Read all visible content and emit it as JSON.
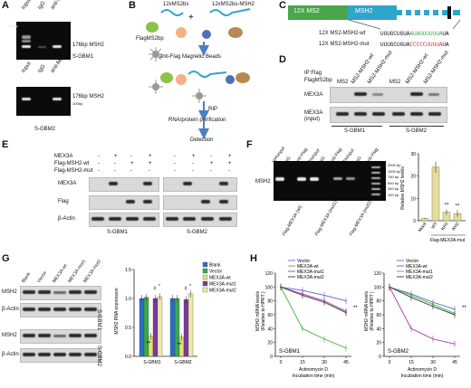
{
  "panels": {
    "A": "A",
    "B": "B",
    "C": "C",
    "D": "D",
    "E": "E",
    "F": "F",
    "G": "G",
    "H": "H"
  },
  "A": {
    "lanes": [
      "Input",
      "IgG",
      "anti-MEX3A"
    ],
    "band_label": "176bp MSH2",
    "cells1": "S-GBM1",
    "cells2": "S-GBM2",
    "ladder": [
      "250bp",
      "200bp",
      "150bp",
      "100bp"
    ],
    "ladder2": "100bp"
  },
  "B": {
    "top_left": "12xMS2bs",
    "top_right": "12xMS2bs-MSH2",
    "flag": "FlagMS2bp",
    "beads": "anti-Flag Magnetic Beads",
    "rip": "RIP",
    "purif": "RNA/protein purification",
    "detect": "Detection"
  },
  "C": {
    "construct": "12X MS2",
    "gene": "MSH2",
    "wt_label": "12X MS2-MSH2-wt",
    "wt_seq_a": "UUUGCUGUA",
    "wt_seq_b": "AUAGUUUUUA",
    "wt_seq_c": "UA",
    "mut_label": "12X MS2-MSH2-mut",
    "mut_seq_a": "UUUGCUGUA",
    "mut_seq_b": "CCCCCUUUUA",
    "mut_seq_c": "UA"
  },
  "D": {
    "header": "IP:Flag",
    "flag": "FlagMS2bp",
    "lanes": [
      "MS2",
      "MS2-MSH2-wt",
      "MS2-MSH2-mut",
      "MS2",
      "MS2-MSH2-wt",
      "MS2-MSH2-mut"
    ],
    "row1": "MEX3A",
    "row2": "MEX3A",
    "row2b": "(input)",
    "cells1": "S-GBM1",
    "cells2": "S-GBM2"
  },
  "E": {
    "rows": [
      "MEX3A",
      "Flag-MSH2-wt",
      "Flag-MSH2-mut"
    ],
    "marks": [
      [
        "-",
        "+",
        "-",
        "+",
        "-",
        "+",
        "-",
        "+"
      ],
      [
        "-",
        "-",
        "+",
        "+",
        "-",
        "-",
        "+",
        "+"
      ],
      [
        "-",
        "-",
        "-",
        "-",
        "-",
        "-",
        "-",
        "-"
      ]
    ],
    "blots": [
      "MEX3A",
      "Flag",
      "β-Actin"
    ],
    "cells1": "S-GBM1",
    "cells2": "S-GBM2"
  },
  "F": {
    "lanes": [
      "10%Input",
      "IgG",
      "anti-Flag",
      "2%Input",
      "IgG",
      "anti-Flag",
      "2%Input",
      "IgG",
      "anti-Flag"
    ],
    "row": "MSH2",
    "ladder": [
      "2000 bp",
      "1000 bp",
      "750 bp",
      "500 bp",
      "250 bp",
      "100 bp"
    ],
    "groups": [
      "Flag-MEX3A (wt)",
      "Flag-MEX3A (mut1)",
      "Flag-MEX3A (mut2)"
    ],
    "bar_ylabel": "Relative MSH2 levels",
    "bar_xlabel": "Flag-MEX3A-mut",
    "sig": "**"
  },
  "G": {
    "lanes": [
      "Blank",
      "Vector",
      "MEX3A-wt",
      "MEX3A-mut1",
      "MEX3A-mut2"
    ],
    "rows": [
      "MSH2",
      "β-Actin",
      "MSH2",
      "β-Actin"
    ],
    "cells1": "S-GBM1",
    "cells2": "S-GBM2",
    "ylabel": "MSH2 RNA expression",
    "sig1": "*",
    "sig2": "#",
    "sig3": "**"
  },
  "H": {
    "ylabel": "MSH2 mRNA levels (Relative to HPRT )",
    "xlabel": "Actinomycin D Incubation time (min)",
    "sig": "**",
    "left_title": "S-GBM1",
    "right_title": "S-GBM2"
  },
  "chart_data": [
    {
      "type": "bar",
      "categories": [
        "Mock",
        "WT",
        "KH1",
        "KH2"
      ],
      "values": [
        1.0,
        24.0,
        3.8,
        3.2
      ],
      "errors": [
        0.3,
        2.5,
        1.2,
        1.5
      ],
      "ylabel": "Relative MSH2 levels",
      "xlabel": "Flag-MEX3A-mut",
      "ylim": [
        0,
        30
      ],
      "yticks": [
        0,
        10,
        20,
        30
      ],
      "xticks": [
        "Mock",
        "WT",
        "KH1",
        "KH2"
      ]
    },
    {
      "type": "bar",
      "categories": [
        "S-GBM1",
        "S-GBM2"
      ],
      "series": [
        {
          "name": "Blank",
          "color": "#2a6fc9",
          "values": [
            1.0,
            1.0
          ]
        },
        {
          "name": "Vector",
          "color": "#3aa84a",
          "values": [
            1.02,
            1.0
          ]
        },
        {
          "name": "MEX3A-wt",
          "color": "#e8e070",
          "values": [
            0.35,
            0.33
          ]
        },
        {
          "name": "MEX3A-mut1",
          "color": "#7a3aa0",
          "values": [
            1.0,
            0.98
          ]
        },
        {
          "name": "MEX3A-mut2",
          "color": "#efe9a8",
          "values": [
            1.03,
            1.08
          ]
        }
      ],
      "ylabel": "MSH2 RNA expression",
      "ylim": [
        0,
        1.5
      ],
      "yticks": [
        "0.0",
        "0.5",
        "1.0",
        "1.5"
      ],
      "xticks": [
        "S-GBM1",
        "S-GBM2"
      ]
    },
    {
      "type": "line",
      "x": [
        0,
        15,
        30,
        45
      ],
      "series": [
        {
          "name": "Vector",
          "color": "#6f6fd8",
          "values": [
            100,
            95,
            88,
            80
          ]
        },
        {
          "name": "MEX3A-wt",
          "color": "#4bc04b",
          "values": [
            100,
            40,
            25,
            12
          ]
        },
        {
          "name": "MEX3A-mut1",
          "color": "#b04ab0",
          "values": [
            100,
            90,
            80,
            65
          ]
        },
        {
          "name": "MEX3A-mut2",
          "color": "#444444",
          "values": [
            100,
            88,
            78,
            63
          ]
        }
      ],
      "xlabel": "Actinomycin D Incubation time (min)",
      "ylim": [
        0,
        120
      ],
      "yticks": [
        0,
        20,
        40,
        60,
        80,
        100,
        120
      ],
      "xticks": [
        0,
        15,
        30,
        45
      ],
      "title": "S-GBM1"
    },
    {
      "type": "line",
      "x": [
        0,
        15,
        30,
        45
      ],
      "series": [
        {
          "name": "Vector",
          "color": "#6f6fd8",
          "values": [
            100,
            90,
            78,
            68
          ]
        },
        {
          "name": "MEX3A-wt",
          "color": "#b04ab0",
          "values": [
            100,
            40,
            25,
            18
          ]
        },
        {
          "name": "MEX3A-mut1",
          "color": "#4bc04b",
          "values": [
            100,
            88,
            75,
            62
          ]
        },
        {
          "name": "MEX3A-mut2",
          "color": "#444444",
          "values": [
            100,
            85,
            72,
            60
          ]
        }
      ],
      "xlabel": "Actinomycin D Incubation time (min)",
      "ylim": [
        0,
        120
      ],
      "yticks": [
        0,
        20,
        40,
        60,
        80,
        100,
        120
      ],
      "xticks": [
        0,
        15,
        30,
        45
      ],
      "title": "S-GBM2"
    }
  ]
}
